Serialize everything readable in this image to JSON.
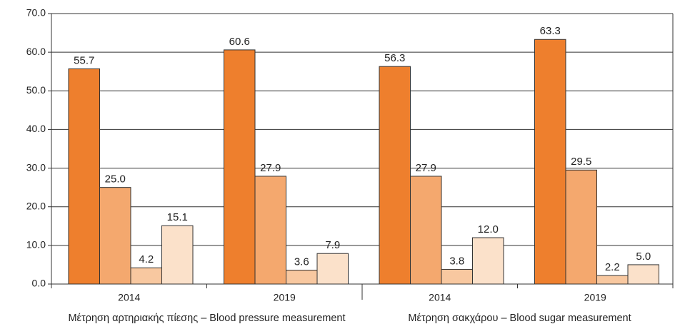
{
  "chart_data": {
    "type": "bar",
    "categories": [
      "2014",
      "2019",
      "2014",
      "2019"
    ],
    "group_labels": [
      "Μέτρηση αρτηριακής πίεσης – Blood pressure measurement",
      "Μέτρηση σακχάρου – Blood sugar measurement"
    ],
    "series": [
      {
        "color": "#ee7f2d",
        "values": [
          55.7,
          60.6,
          56.3,
          63.3
        ],
        "value_labels": [
          "55.7",
          "60.6",
          "56.3",
          "63.3"
        ]
      },
      {
        "color": "#f4a86e",
        "values": [
          25.0,
          27.9,
          27.9,
          29.5
        ],
        "value_labels": [
          "25.0",
          "27.9",
          "27.9",
          "29.5"
        ]
      },
      {
        "color": "#f8c8a0",
        "values": [
          4.2,
          3.6,
          3.8,
          2.2
        ],
        "value_labels": [
          "4.2",
          "3.6",
          "3.8",
          "2.2"
        ]
      },
      {
        "color": "#fbe1ca",
        "values": [
          15.1,
          7.9,
          12.0,
          5.0
        ],
        "value_labels": [
          "15.1",
          "7.9",
          "12.0",
          "5.0"
        ]
      }
    ],
    "ylim": [
      0,
      70
    ],
    "yticks": [
      {
        "value": 0,
        "label": "0.0"
      },
      {
        "value": 10,
        "label": "10.0"
      },
      {
        "value": 20,
        "label": "20.0"
      },
      {
        "value": 30,
        "label": "30.0"
      },
      {
        "value": 40,
        "label": "40.0"
      },
      {
        "value": 50,
        "label": "50.0"
      },
      {
        "value": 60,
        "label": "60.0"
      },
      {
        "value": 70,
        "label": "70.0"
      }
    ],
    "grid": true
  }
}
